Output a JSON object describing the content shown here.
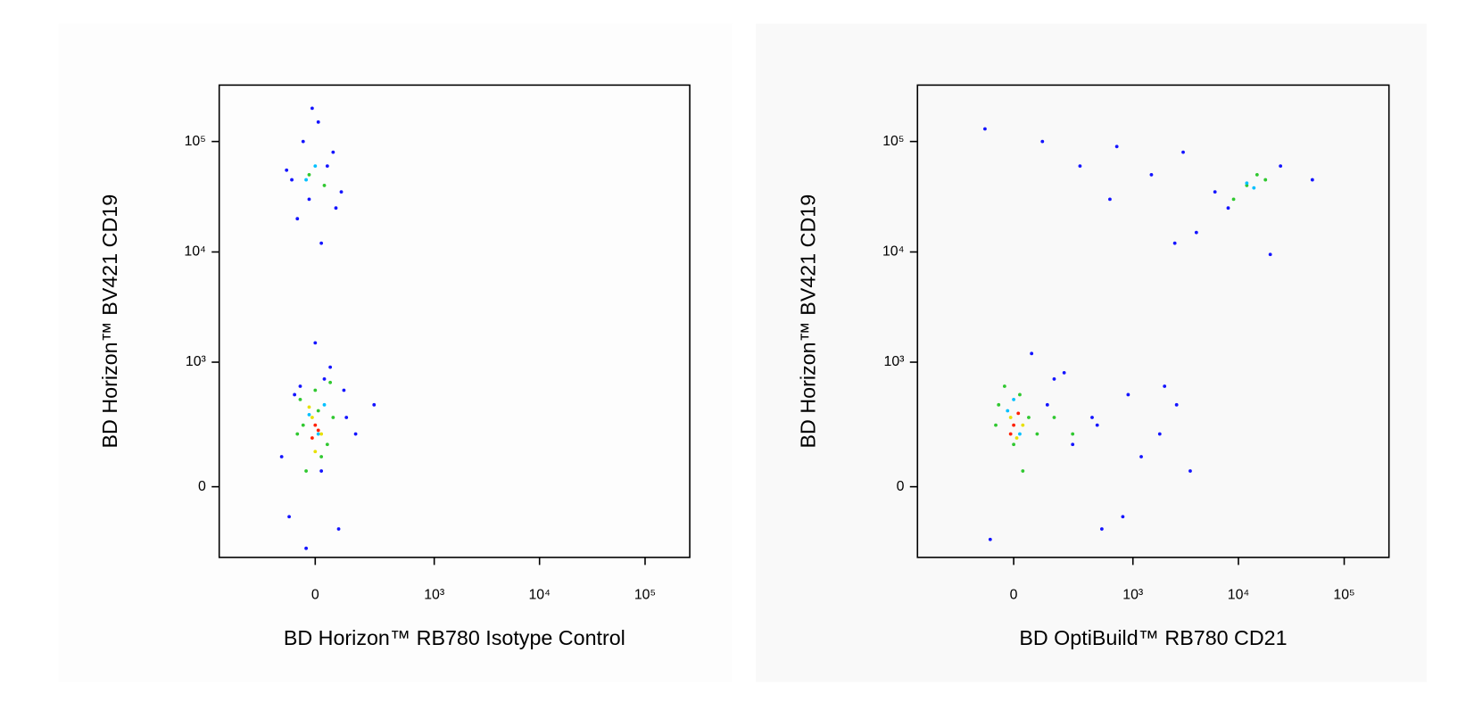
{
  "chart_data": [
    {
      "type": "scatter",
      "xlabel": "BD Horizon™ RB780 Isotype Control",
      "ylabel": "BD Horizon™ BV421 CD19",
      "xlim": [
        -600,
        265000
      ],
      "ylim": [
        -310,
        324000
      ],
      "xticks": [
        0,
        {
          "value": 1000,
          "label": "10³"
        },
        {
          "value": 10000,
          "label": "10⁴"
        },
        {
          "value": 100000,
          "label": "10⁵"
        }
      ],
      "yticks": [
        0,
        {
          "value": 1000,
          "label": "10³"
        },
        {
          "value": 10000,
          "label": "10⁴"
        },
        {
          "value": 100000,
          "label": "10⁵"
        }
      ],
      "series": [
        {
          "color": "#1414ff",
          "x": [
            -80,
            40,
            -20,
            60,
            -60,
            10,
            90,
            -100,
            20,
            -40,
            70,
            -10,
            30,
            -70,
            50,
            0,
            110,
            -90,
            150,
            250,
            -30,
            80,
            -50,
            20,
            -120,
            100
          ],
          "y": [
            45000,
            60000,
            30000,
            80000,
            20000,
            150000,
            35000,
            55000,
            12000,
            100000,
            25000,
            200000,
            700,
            500,
            900,
            1500,
            300,
            -100,
            200,
            400,
            -250,
            -150,
            600,
            50,
            100,
            550
          ]
        },
        {
          "color": "#30c830",
          "x": [
            -20,
            30,
            -50,
            10,
            40,
            -40,
            0,
            60,
            -30,
            20,
            -60,
            50
          ],
          "y": [
            50000,
            40000,
            450,
            350,
            150,
            250,
            550,
            300,
            50,
            100,
            200,
            650
          ]
        },
        {
          "color": "#00c0ff",
          "x": [
            0,
            -30,
            30,
            10,
            -20
          ],
          "y": [
            60000,
            45000,
            400,
            200,
            320
          ]
        },
        {
          "color": "#e8e000",
          "x": [
            -10,
            20,
            0,
            -20
          ],
          "y": [
            300,
            200,
            120,
            380
          ]
        },
        {
          "color": "#ff2000",
          "x": [
            0,
            -10,
            10
          ],
          "y": [
            250,
            180,
            220
          ]
        }
      ]
    },
    {
      "type": "scatter",
      "xlabel": "BD OptiBuild™ RB780 CD21",
      "ylabel": "BD Horizon™ BV421 CD19",
      "xlim": [
        -600,
        265000
      ],
      "ylim": [
        -310,
        324000
      ],
      "xticks": [
        0,
        {
          "value": 1000,
          "label": "10³"
        },
        {
          "value": 10000,
          "label": "10⁴"
        },
        {
          "value": 100000,
          "label": "10⁵"
        }
      ],
      "yticks": [
        0,
        {
          "value": 1000,
          "label": "10³"
        },
        {
          "value": 10000,
          "label": "10⁴"
        },
        {
          "value": 100000,
          "label": "10⁵"
        }
      ],
      "series": [
        {
          "color": "#1414ff",
          "x": [
            -100,
            100,
            300,
            700,
            1500,
            2500,
            600,
            3000,
            8000,
            25000,
            50000,
            6000,
            20000,
            4000,
            200,
            400,
            900,
            1800,
            2600,
            500,
            1200,
            3500,
            -80,
            60,
            150,
            800,
            2000,
            120,
            250,
            450
          ],
          "y": [
            130000,
            100000,
            60000,
            90000,
            50000,
            12000,
            30000,
            80000,
            25000,
            60000,
            45000,
            35000,
            9500,
            15000,
            800,
            300,
            500,
            200,
            400,
            -150,
            100,
            50,
            -200,
            1200,
            700,
            -100,
            600,
            400,
            150,
            250
          ]
        },
        {
          "color": "#30c830",
          "x": [
            -50,
            0,
            50,
            -30,
            30,
            80,
            12000,
            15000,
            9000,
            18000,
            150,
            250,
            -60,
            20
          ],
          "y": [
            400,
            150,
            300,
            600,
            50,
            200,
            40000,
            50000,
            30000,
            45000,
            300,
            200,
            250,
            500
          ]
        },
        {
          "color": "#00c0ff",
          "x": [
            -20,
            20,
            0,
            12000,
            14000
          ],
          "y": [
            350,
            200,
            450,
            42000,
            38000
          ]
        },
        {
          "color": "#e8e000",
          "x": [
            -10,
            10,
            30
          ],
          "y": [
            300,
            180,
            250
          ]
        },
        {
          "color": "#ff2000",
          "x": [
            0,
            -10,
            15
          ],
          "y": [
            250,
            200,
            330
          ]
        }
      ]
    }
  ]
}
